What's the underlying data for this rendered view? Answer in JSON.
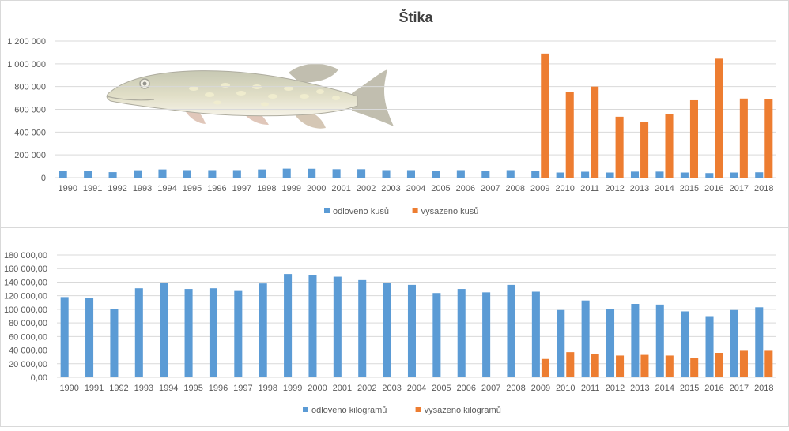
{
  "chart_data": [
    {
      "type": "bar",
      "title": "Štika",
      "categories": [
        "1990",
        "1991",
        "1992",
        "1993",
        "1994",
        "1995",
        "1996",
        "1997",
        "1998",
        "1999",
        "2000",
        "2001",
        "2002",
        "2003",
        "2004",
        "2005",
        "2006",
        "2007",
        "2008",
        "2009",
        "2010",
        "2011",
        "2012",
        "2013",
        "2014",
        "2015",
        "2016",
        "2017",
        "2018"
      ],
      "series": [
        {
          "name": "odloveno kusů",
          "color": "#5b9bd5",
          "values": [
            60000,
            58000,
            48000,
            65000,
            72000,
            66000,
            66000,
            66000,
            72000,
            79000,
            78000,
            74000,
            74000,
            66000,
            66000,
            60000,
            66000,
            60000,
            66000,
            60000,
            45000,
            52000,
            45000,
            53000,
            53000,
            45000,
            40000,
            45000,
            47000
          ]
        },
        {
          "name": "vysazeno kusů",
          "color": "#ed7d31",
          "values": [
            null,
            null,
            null,
            null,
            null,
            null,
            null,
            null,
            null,
            null,
            null,
            null,
            null,
            null,
            null,
            null,
            null,
            null,
            null,
            1090000,
            750000,
            800000,
            535000,
            490000,
            555000,
            680000,
            1045000,
            695000,
            690000
          ]
        }
      ],
      "y_ticks": [
        "0",
        "200 000",
        "400 000",
        "600 000",
        "800 000",
        "1 000 000",
        "1 200 000"
      ],
      "ylim": [
        0,
        1200000
      ],
      "grid": true,
      "legend": "bottom",
      "illustration": "pike-fish-drawing"
    },
    {
      "type": "bar",
      "title": "",
      "categories": [
        "1990",
        "1991",
        "1992",
        "1993",
        "1994",
        "1995",
        "1996",
        "1997",
        "1998",
        "1999",
        "2000",
        "2001",
        "2002",
        "2003",
        "2004",
        "2005",
        "2006",
        "2007",
        "2008",
        "2009",
        "2010",
        "2011",
        "2012",
        "2013",
        "2014",
        "2015",
        "2016",
        "2017",
        "2018"
      ],
      "series": [
        {
          "name": "odloveno kilogramů",
          "color": "#5b9bd5",
          "values": [
            118000,
            117000,
            100000,
            131000,
            139000,
            130000,
            131000,
            127000,
            138000,
            152000,
            150000,
            148000,
            143000,
            139000,
            136000,
            124000,
            130000,
            125000,
            136000,
            126000,
            99000,
            113000,
            101000,
            108000,
            107000,
            97000,
            90000,
            99000,
            103000
          ]
        },
        {
          "name": "vysazeno kilogramů",
          "color": "#ed7d31",
          "values": [
            null,
            null,
            null,
            null,
            null,
            null,
            null,
            null,
            null,
            null,
            null,
            null,
            null,
            null,
            null,
            null,
            null,
            null,
            null,
            27000,
            37000,
            34000,
            32000,
            33000,
            32000,
            29000,
            36000,
            39000,
            39000
          ]
        }
      ],
      "y_ticks": [
        "0,00",
        "20 000,00",
        "40 000,00",
        "60 000,00",
        "80 000,00",
        "100 000,00",
        "120 000,00",
        "140 000,00",
        "160 000,00",
        "180 000,00"
      ],
      "ylim": [
        0,
        180000
      ],
      "grid": true,
      "legend": "bottom"
    }
  ]
}
